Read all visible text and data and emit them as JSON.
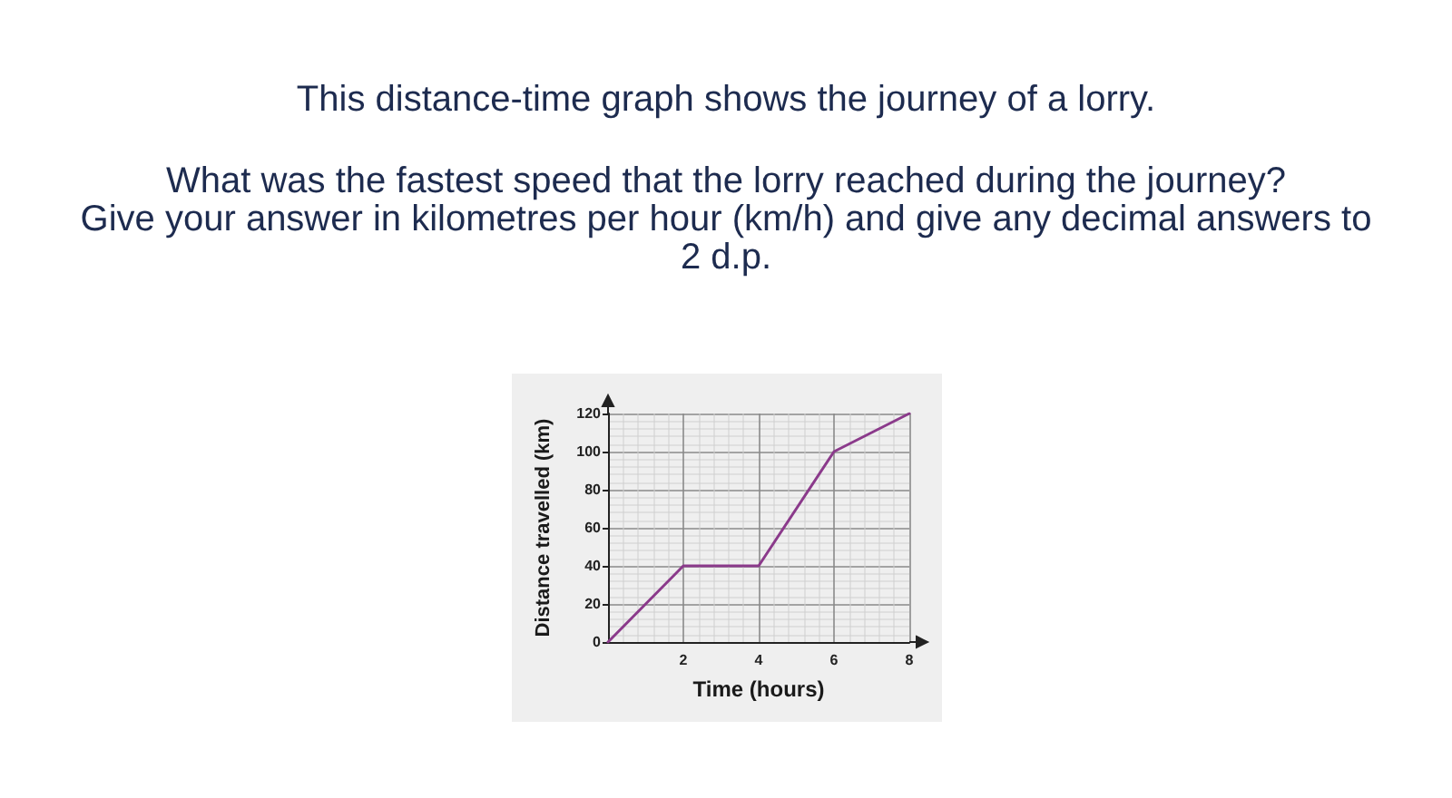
{
  "chart_data": {
    "type": "line",
    "title": "This distance-time graph shows the journey of a lorry.",
    "annotations": [
      "What was the fastest speed that the lorry reached during the journey?",
      "Give your answer in kilometres per hour (km/h) and give any decimal answers to 2 d.p."
    ],
    "xlabel": "Time (hours)",
    "ylabel": "Distance travelled (km)",
    "x": [
      0,
      2,
      4,
      6,
      8
    ],
    "series": [
      {
        "color": "#8b3a8b",
        "values": [
          0,
          40,
          40,
          100,
          120
        ]
      }
    ],
    "xlim": [
      0,
      8
    ],
    "ylim": [
      0,
      120
    ],
    "xticks": [
      2,
      4,
      6,
      8
    ],
    "yticks": [
      0,
      20,
      40,
      60,
      80,
      100,
      120
    ],
    "grid": true,
    "marker": "none",
    "line_style": "solid"
  }
}
